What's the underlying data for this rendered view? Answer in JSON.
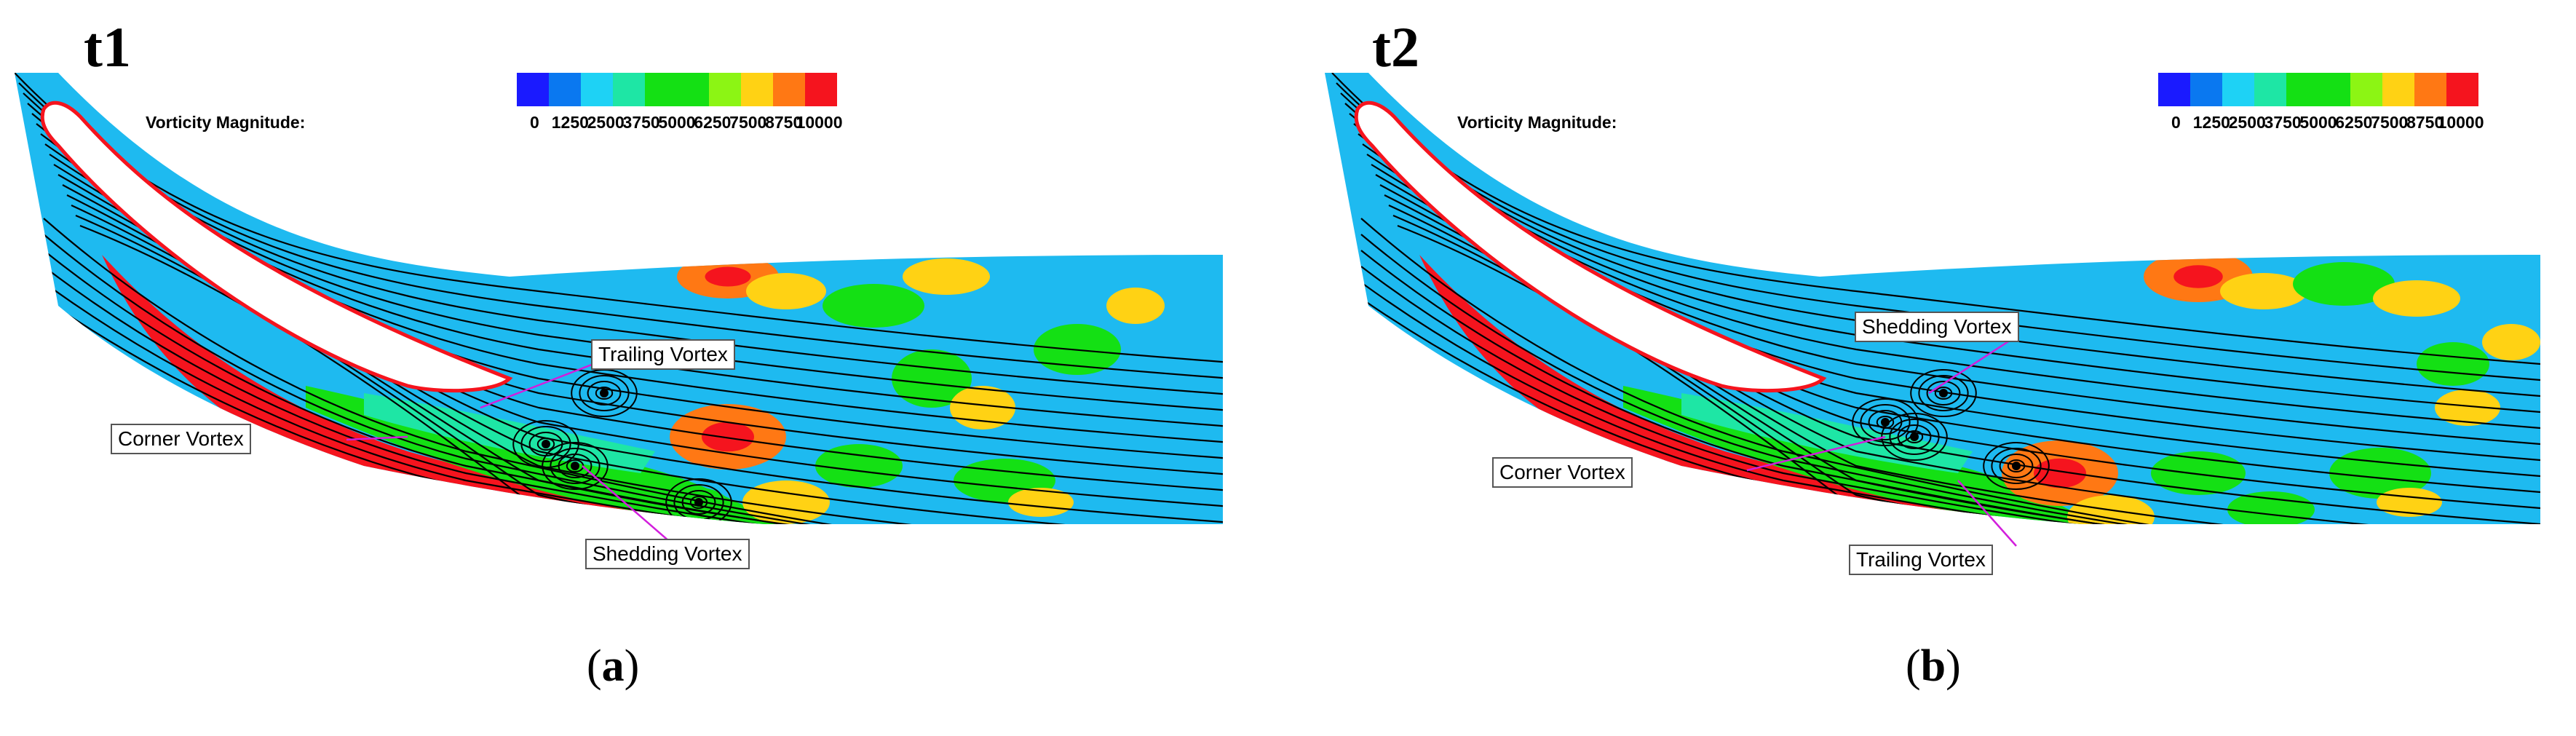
{
  "panels": [
    {
      "time_label": "t1",
      "caption_letter": "a",
      "callouts": {
        "trailing": "Trailing Vortex",
        "corner": "Corner Vortex",
        "shedding": "Shedding Vortex"
      }
    },
    {
      "time_label": "t2",
      "caption_letter": "b",
      "callouts": {
        "shedding": "Shedding Vortex",
        "corner": "Corner Vortex",
        "trailing": "Trailing Vortex"
      }
    }
  ],
  "legend": {
    "title": "Vorticity Magnitude:",
    "ticks": [
      "0",
      "1250",
      "2500",
      "3750",
      "5000",
      "6250",
      "7500",
      "8750",
      "10000"
    ],
    "colors": [
      "#1a1aff",
      "#0a78f0",
      "#1ed2f5",
      "#1ee6a5",
      "#14e014",
      "#14e014",
      "#8cf514",
      "#ffd214",
      "#ff7814",
      "#f5141e"
    ]
  },
  "field_colors": {
    "background": "#1ebaf0",
    "blade": "#ffffff",
    "edge": "#f5141e",
    "high": "#ff7814",
    "mid": "#ffd214",
    "low": "#14e014",
    "cyan": "#1ee6a5",
    "stream": "#000000",
    "callout_line": "#d21edc"
  }
}
